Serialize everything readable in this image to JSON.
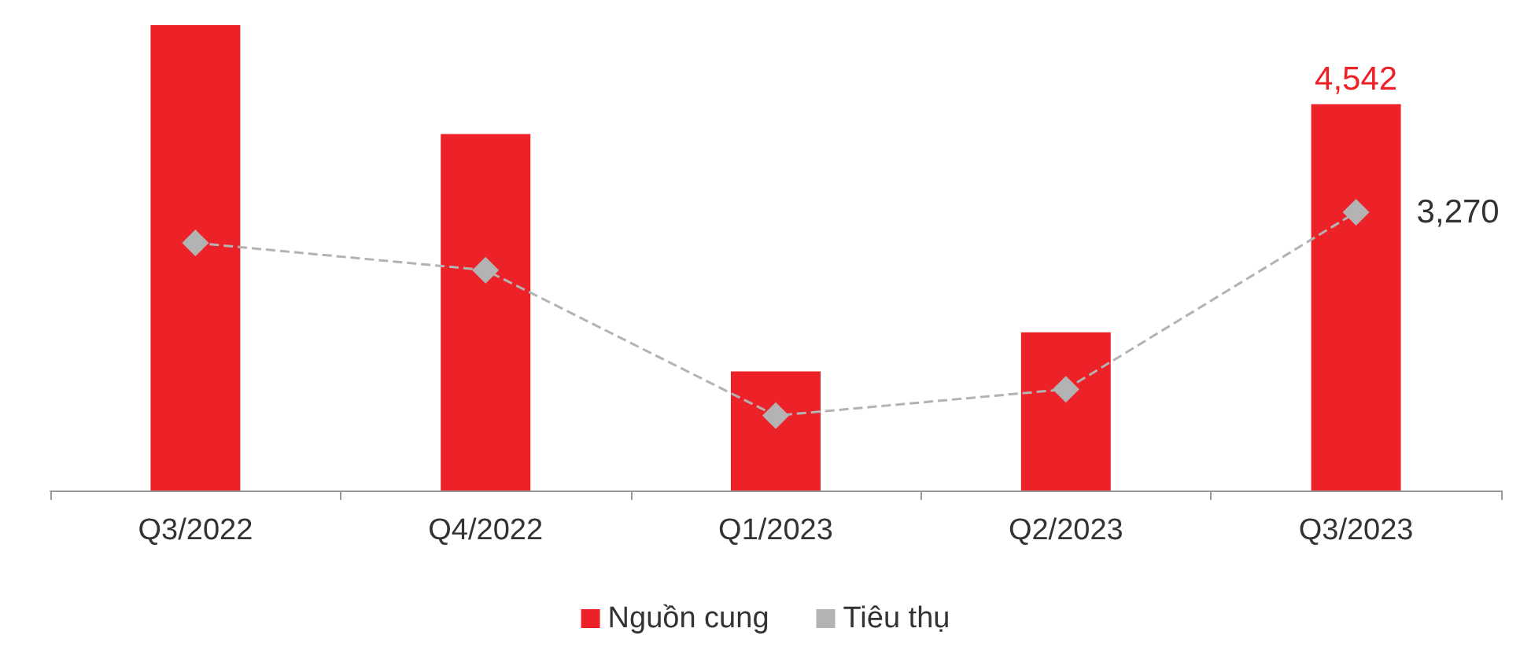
{
  "chart_data": {
    "type": "bar",
    "categories": [
      "Q3/2022",
      "Q4/2022",
      "Q1/2023",
      "Q2/2023",
      "Q3/2023"
    ],
    "series": [
      {
        "name": "Nguồn cung",
        "color": "#ed2228",
        "values": [
          5470,
          4190,
          1400,
          1860,
          4542
        ],
        "value_labels": [
          null,
          null,
          null,
          null,
          "4,542"
        ]
      },
      {
        "name": "Tiêu thụ",
        "type": "line",
        "color": "#b3b3b3",
        "line_style": "dashed",
        "marker": "diamond",
        "values": [
          2910,
          2590,
          880,
          1190,
          3270
        ],
        "value_labels": [
          null,
          null,
          null,
          null,
          "3,270"
        ]
      }
    ],
    "ylim": [
      0,
      5470
    ],
    "tick_labels": "x",
    "grid": false,
    "legend": "bottom"
  }
}
